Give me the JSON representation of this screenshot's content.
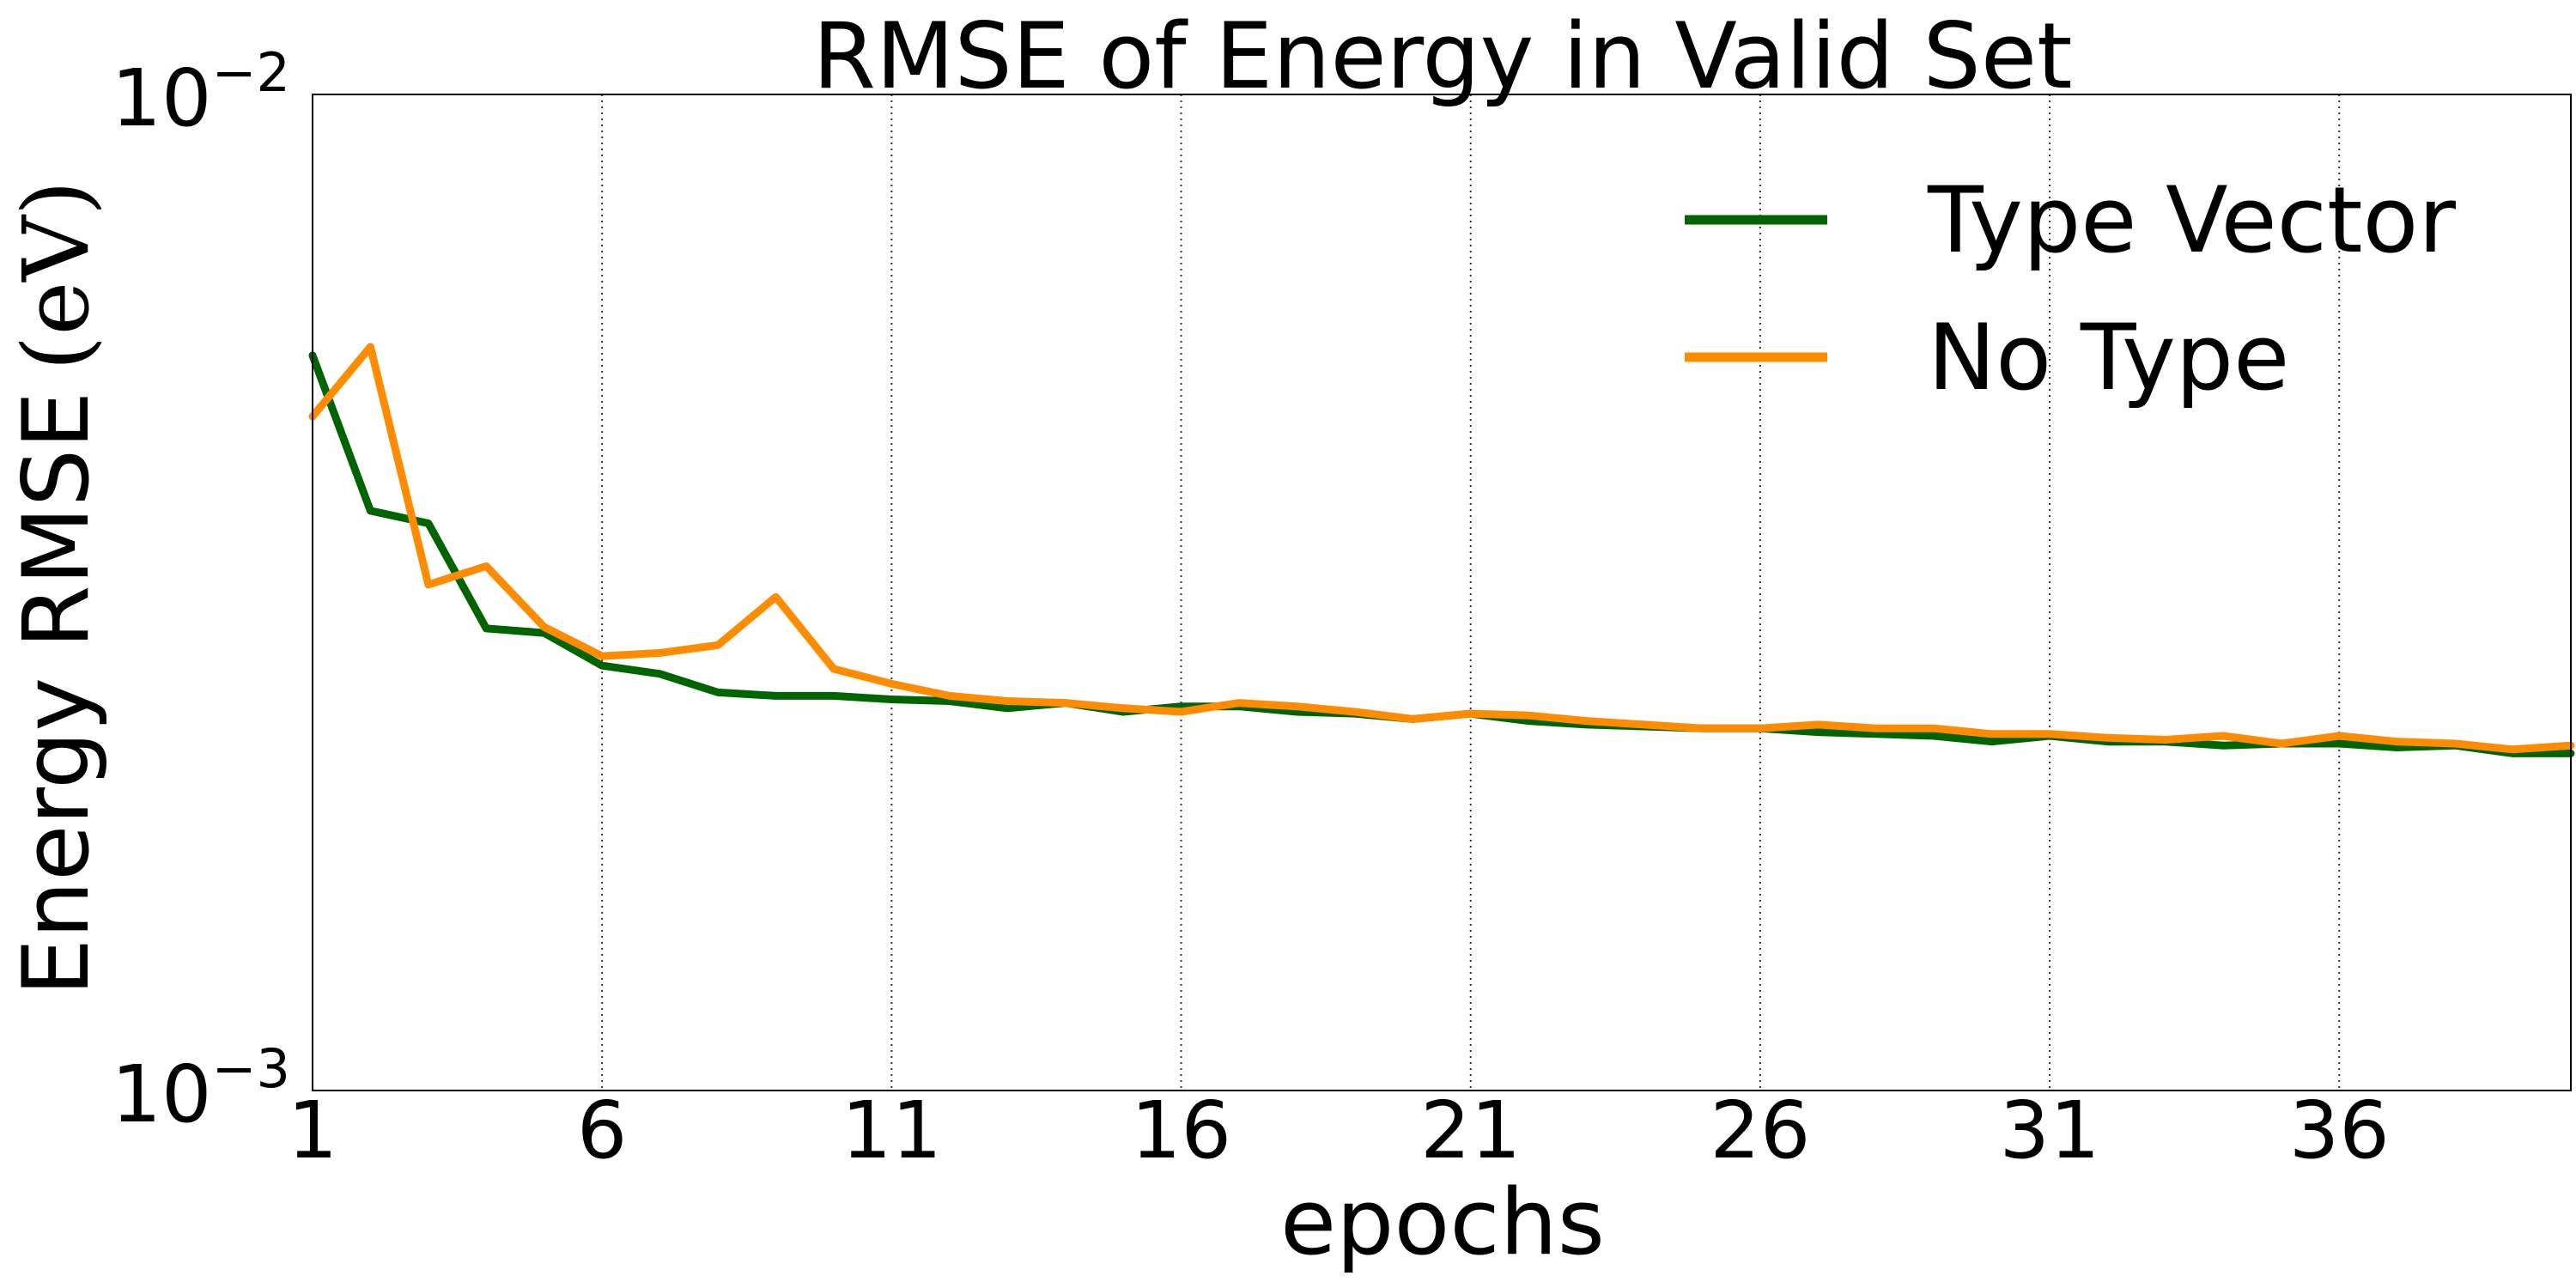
{
  "chart_data": {
    "type": "line",
    "title": "RMSE of Energy in Valid Set",
    "xlabel": "epochs",
    "ylabel": "Energy RMSE",
    "ylabel_unit": "(eV)",
    "y_scale": "log",
    "xlim": [
      1,
      40
    ],
    "ylim": [
      0.001,
      0.01
    ],
    "x_ticks": [
      1,
      6,
      11,
      16,
      21,
      26,
      31,
      36
    ],
    "y_ticks": [
      {
        "value": 0.001,
        "base": "10",
        "exp": "−3"
      },
      {
        "value": 0.01,
        "base": "10",
        "exp": "−2"
      }
    ],
    "grid": "vertical dotted at x ticks",
    "legend_position": "top-right",
    "x": [
      1,
      2,
      3,
      4,
      5,
      6,
      7,
      8,
      9,
      10,
      11,
      12,
      13,
      14,
      15,
      16,
      17,
      18,
      19,
      20,
      21,
      22,
      23,
      24,
      25,
      26,
      27,
      28,
      29,
      30,
      31,
      32,
      33,
      34,
      35,
      36,
      37,
      38,
      39,
      40
    ],
    "series": [
      {
        "name": "Type Vector",
        "color": "#006400",
        "values": [
          0.00547,
          0.00382,
          0.00371,
          0.00291,
          0.00288,
          0.00267,
          0.00262,
          0.00251,
          0.00249,
          0.00249,
          0.00247,
          0.00246,
          0.00242,
          0.00245,
          0.0024,
          0.00243,
          0.00243,
          0.0024,
          0.00239,
          0.00236,
          0.00239,
          0.00235,
          0.00233,
          0.00232,
          0.00231,
          0.00231,
          0.00229,
          0.00228,
          0.00227,
          0.00224,
          0.00227,
          0.00224,
          0.00224,
          0.00222,
          0.00223,
          0.00223,
          0.00221,
          0.00222,
          0.00218,
          0.00218
        ]
      },
      {
        "name": "No Type",
        "color": "#ff8c00",
        "values": [
          0.00475,
          0.00558,
          0.00322,
          0.00336,
          0.00292,
          0.00273,
          0.00275,
          0.0028,
          0.00313,
          0.00265,
          0.00256,
          0.00249,
          0.00246,
          0.00245,
          0.00242,
          0.0024,
          0.00245,
          0.00243,
          0.0024,
          0.00236,
          0.00239,
          0.00238,
          0.00235,
          0.00233,
          0.00231,
          0.00231,
          0.00233,
          0.00231,
          0.00231,
          0.00228,
          0.00228,
          0.00226,
          0.00225,
          0.00227,
          0.00223,
          0.00227,
          0.00224,
          0.00223,
          0.0022,
          0.00222
        ]
      }
    ]
  }
}
